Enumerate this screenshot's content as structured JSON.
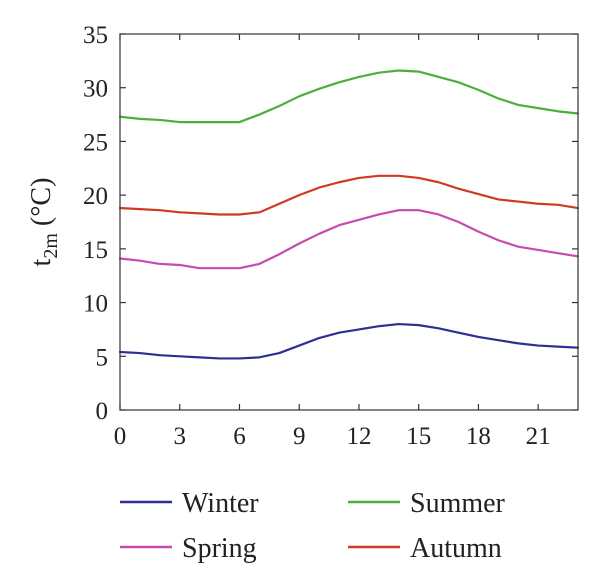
{
  "chart_data": {
    "type": "line",
    "x": [
      0,
      1,
      2,
      3,
      4,
      5,
      6,
      7,
      8,
      9,
      10,
      11,
      12,
      13,
      14,
      15,
      16,
      17,
      18,
      19,
      20,
      21,
      22,
      23
    ],
    "xticks": [
      "0",
      "3",
      "6",
      "9",
      "12",
      "15",
      "18",
      "21"
    ],
    "xlim": [
      0,
      23
    ],
    "yticks": [
      "0",
      "5",
      "10",
      "15",
      "20",
      "25",
      "30",
      "35"
    ],
    "ylim": [
      0,
      35
    ],
    "ylabel": "t",
    "ylabel_sub": "2m",
    "ylabel_unit": " (°C)",
    "legend_position": "bottom",
    "grid": false,
    "series": [
      {
        "name": "Winter",
        "color": "#2e2f93",
        "values": [
          5.4,
          5.3,
          5.1,
          5.0,
          4.9,
          4.8,
          4.8,
          4.9,
          5.3,
          6.0,
          6.7,
          7.2,
          7.5,
          7.8,
          8.0,
          7.9,
          7.6,
          7.2,
          6.8,
          6.5,
          6.2,
          6.0,
          5.9,
          5.8
        ]
      },
      {
        "name": "Summer",
        "color": "#4caf3c",
        "values": [
          27.3,
          27.1,
          27.0,
          26.8,
          26.8,
          26.8,
          26.8,
          27.5,
          28.3,
          29.2,
          29.9,
          30.5,
          31.0,
          31.4,
          31.6,
          31.5,
          31.0,
          30.5,
          29.8,
          29.0,
          28.4,
          28.1,
          27.8,
          27.6
        ]
      },
      {
        "name": "Spring",
        "color": "#c64bb0",
        "values": [
          14.1,
          13.9,
          13.6,
          13.5,
          13.2,
          13.2,
          13.2,
          13.6,
          14.5,
          15.5,
          16.4,
          17.2,
          17.7,
          18.2,
          18.6,
          18.6,
          18.2,
          17.5,
          16.6,
          15.8,
          15.2,
          14.9,
          14.6,
          14.3
        ]
      },
      {
        "name": "Autumn",
        "color": "#cf3b22",
        "values": [
          18.8,
          18.7,
          18.6,
          18.4,
          18.3,
          18.2,
          18.2,
          18.4,
          19.2,
          20.0,
          20.7,
          21.2,
          21.6,
          21.8,
          21.8,
          21.6,
          21.2,
          20.6,
          20.1,
          19.6,
          19.4,
          19.2,
          19.1,
          18.8
        ]
      }
    ]
  }
}
